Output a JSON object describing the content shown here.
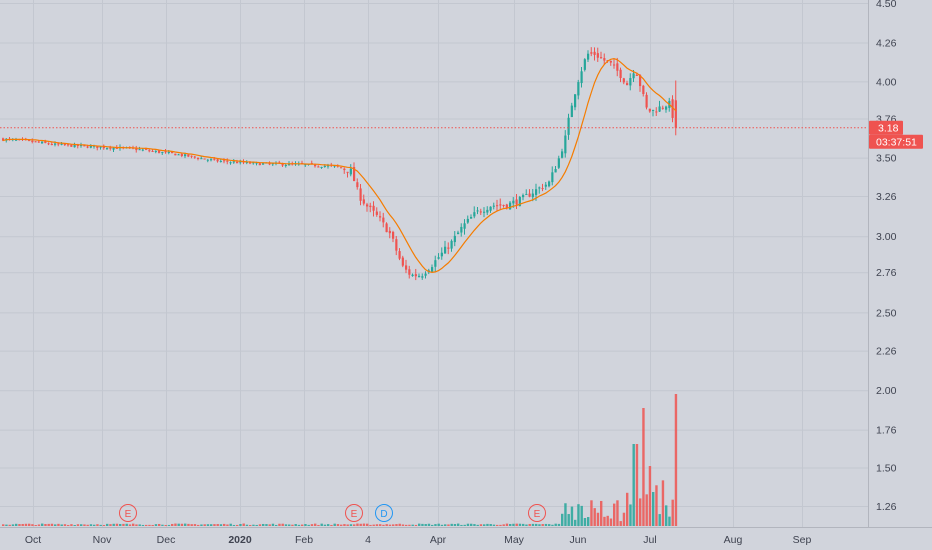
{
  "chart_data": {
    "type": "candlestick",
    "y_ticks": [
      "4.50",
      "4.26",
      "4.00",
      "3.76",
      "3.50",
      "3.26",
      "3.00",
      "2.76",
      "2.50",
      "2.26",
      "2.00",
      "1.76",
      "1.50",
      "1.26"
    ],
    "ylim": [
      1.1,
      4.5
    ],
    "x_labels": [
      {
        "label": "Oct",
        "bold": false
      },
      {
        "label": "Nov",
        "bold": false
      },
      {
        "label": "Dec",
        "bold": false
      },
      {
        "label": "2020",
        "bold": true
      },
      {
        "label": "Feb",
        "bold": false
      },
      {
        "label": "4",
        "bold": false
      },
      {
        "label": "Apr",
        "bold": false
      },
      {
        "label": "May",
        "bold": false
      },
      {
        "label": "Jun",
        "bold": false
      },
      {
        "label": "Jul",
        "bold": false
      },
      {
        "label": "Aug",
        "bold": false
      },
      {
        "label": "Sep",
        "bold": false
      }
    ],
    "last_price": "3.18",
    "countdown": "03:37:51",
    "events": [
      {
        "letter": "E",
        "kind": "earnings",
        "color": "#ef5350"
      },
      {
        "letter": "E",
        "kind": "earnings",
        "color": "#ef5350"
      },
      {
        "letter": "D",
        "kind": "dividend",
        "color": "#2196f3"
      },
      {
        "letter": "E",
        "kind": "earnings",
        "color": "#ef5350"
      }
    ],
    "colors": {
      "up": "#26a69a",
      "down": "#ef5350",
      "ma": "#f57c00",
      "grid": "#c3c7d0",
      "background": "#d1d4dc"
    }
  }
}
